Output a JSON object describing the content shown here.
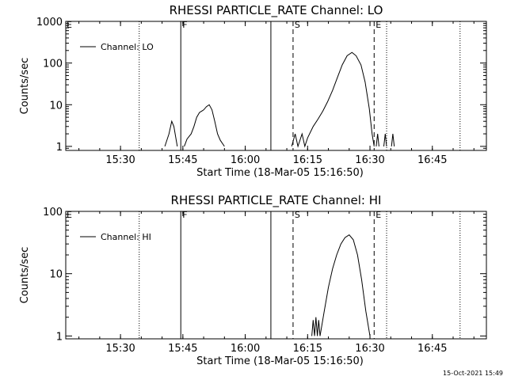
{
  "chart_data": [
    {
      "type": "line",
      "title": "RHESSI PARTICLE_RATE Channel: LO",
      "xlabel": "Start Time (18-Mar-05 15:16:50)",
      "ylabel": "Counts/sec",
      "yscale": "log",
      "xlim": [
        "15:16:50",
        "16:58:00"
      ],
      "ylim": [
        0.8,
        1000
      ],
      "x_ticks": [
        "15:30",
        "15:45",
        "16:00",
        "16:15",
        "16:30",
        "16:45"
      ],
      "y_ticks": [
        "1",
        "10",
        "100",
        "1000"
      ],
      "legend": {
        "position": "top-left",
        "entries": [
          "Channel: LO"
        ]
      },
      "markers": [
        {
          "time": "15:34:30",
          "style": "dotted",
          "label": ""
        },
        {
          "time": "15:44:30",
          "style": "solid",
          "label": "F"
        },
        {
          "time": "16:06:10",
          "style": "solid",
          "label": ""
        },
        {
          "time": "16:11:30",
          "style": "dashed",
          "label": "S"
        },
        {
          "time": "16:31:00",
          "style": "dashed",
          "label": "E"
        },
        {
          "time": "16:34:00",
          "style": "dotted",
          "label": ""
        },
        {
          "time": "16:51:40",
          "style": "dotted",
          "label": ""
        }
      ],
      "series": [
        {
          "name": "Channel: LO",
          "segments": [
            {
              "x": [
                "15:40:40",
                "15:41:40",
                "15:42:20",
                "15:42:50",
                "15:43:40"
              ],
              "y": [
                1,
                2,
                4,
                3,
                1
              ]
            },
            {
              "x": [
                "15:45:20",
                "15:46:00",
                "15:47:00",
                "15:47:40",
                "15:48:20",
                "15:49:00",
                "15:50:00",
                "15:50:40",
                "15:51:20",
                "15:52:00",
                "15:52:40",
                "15:53:20",
                "15:54:00",
                "15:55:00"
              ],
              "y": [
                1,
                1.5,
                2,
                3,
                5,
                6.5,
                7.5,
                9,
                10,
                7.5,
                4,
                2,
                1.4,
                1
              ]
            },
            {
              "x": [
                "16:11:10",
                "16:12:00",
                "16:12:40",
                "16:13:40",
                "16:14:20",
                "16:15:00",
                "16:16:20",
                "16:17:30",
                "16:18:40",
                "16:19:50",
                "16:21:00",
                "16:22:10",
                "16:23:20",
                "16:24:30",
                "16:25:40",
                "16:26:40",
                "16:27:50",
                "16:28:50",
                "16:29:50",
                "16:30:30",
                "16:31:00"
              ],
              "y": [
                1,
                2,
                1,
                2,
                1,
                1.6,
                3,
                4.5,
                7,
                12,
                22,
                45,
                90,
                150,
                180,
                150,
                90,
                35,
                8,
                2,
                1
              ]
            },
            {
              "x": [
                "16:31:30",
                "16:31:50",
                "16:32:10"
              ],
              "y": [
                1,
                2,
                1
              ]
            },
            {
              "x": [
                "16:33:20",
                "16:33:40",
                "16:34:00"
              ],
              "y": [
                1,
                2,
                1
              ]
            },
            {
              "x": [
                "16:35:10",
                "16:35:30",
                "16:35:50"
              ],
              "y": [
                1,
                2,
                1
              ]
            }
          ]
        }
      ]
    },
    {
      "type": "line",
      "title": "RHESSI PARTICLE_RATE Channel: HI",
      "xlabel": "Start Time (18-Mar-05 15:16:50)",
      "ylabel": "Counts/sec",
      "yscale": "log",
      "xlim": [
        "15:16:50",
        "16:58:00"
      ],
      "ylim": [
        0.9,
        100
      ],
      "x_ticks": [
        "15:30",
        "15:45",
        "16:00",
        "16:15",
        "16:30",
        "16:45"
      ],
      "y_ticks": [
        "1",
        "10",
        "100"
      ],
      "legend": {
        "position": "top-left",
        "entries": [
          "Channel: HI"
        ]
      },
      "markers": [
        {
          "time": "15:34:30",
          "style": "dotted",
          "label": ""
        },
        {
          "time": "15:44:30",
          "style": "solid",
          "label": "F"
        },
        {
          "time": "16:06:10",
          "style": "solid",
          "label": ""
        },
        {
          "time": "16:11:30",
          "style": "dashed",
          "label": "S"
        },
        {
          "time": "16:31:00",
          "style": "dashed",
          "label": "E"
        },
        {
          "time": "16:34:00",
          "style": "dotted",
          "label": ""
        },
        {
          "time": "16:51:40",
          "style": "dotted",
          "label": ""
        }
      ],
      "series": [
        {
          "name": "Channel: HI",
          "segments": [
            {
              "x": [
                "16:16:00",
                "16:16:20",
                "16:16:40",
                "16:17:00",
                "16:17:20",
                "16:17:40",
                "16:18:00"
              ],
              "y": [
                1,
                1.8,
                1,
                2,
                1,
                1.8,
                1
              ]
            },
            {
              "x": [
                "16:18:00",
                "16:19:00",
                "16:20:00",
                "16:21:00",
                "16:22:00",
                "16:23:00",
                "16:24:00",
                "16:25:00",
                "16:26:00",
                "16:27:00",
                "16:28:00",
                "16:29:00",
                "16:30:00"
              ],
              "y": [
                1,
                2.5,
                6,
                12,
                20,
                30,
                38,
                42,
                35,
                20,
                8,
                2.5,
                1
              ]
            }
          ]
        }
      ]
    }
  ],
  "timestamp": "15-Oct-2021 15:49"
}
